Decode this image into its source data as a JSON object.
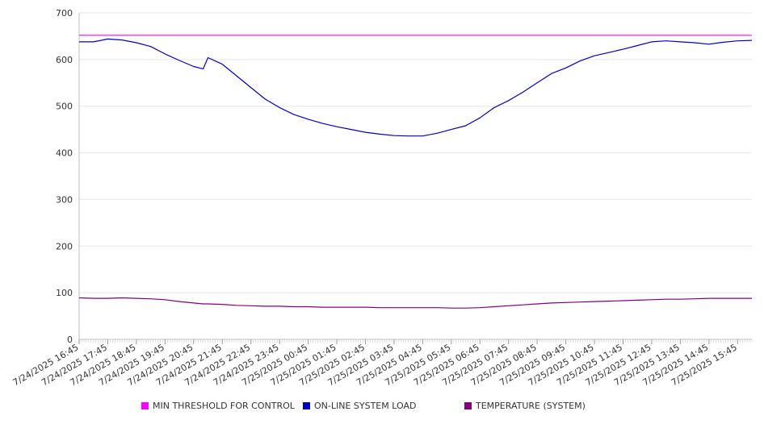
{
  "chart_data": {
    "type": "line",
    "title": "",
    "xlabel": "",
    "ylabel": "",
    "ylim": [
      0,
      700
    ],
    "yticks": [
      0,
      100,
      200,
      300,
      400,
      500,
      600,
      700
    ],
    "grid": true,
    "legend_placement": "bottom",
    "x_tick_labels": [
      "7/24/2025 16:45",
      "7/24/2025 17:45",
      "7/24/2025 18:45",
      "7/24/2025 19:45",
      "7/24/2025 20:45",
      "7/24/2025 21:45",
      "7/24/2025 22:45",
      "7/24/2025 23:45",
      "7/25/2025 00:45",
      "7/25/2025 01:45",
      "7/25/2025 02:45",
      "7/25/2025 03:45",
      "7/25/2025 04:45",
      "7/25/2025 05:45",
      "7/25/2025 06:45",
      "7/25/2025 07:45",
      "7/25/2025 08:45",
      "7/25/2025 09:45",
      "7/25/2025 10:45",
      "7/25/2025 11:45",
      "7/25/2025 12:45",
      "7/25/2025 13:45",
      "7/25/2025 14:45",
      "7/25/2025 15:45"
    ],
    "x_points": [
      "7/24/2025 16:45",
      "7/24/2025 17:15",
      "7/24/2025 17:45",
      "7/24/2025 18:15",
      "7/24/2025 18:45",
      "7/24/2025 19:15",
      "7/24/2025 19:45",
      "7/24/2025 20:15",
      "7/24/2025 20:45",
      "7/24/2025 21:05",
      "7/24/2025 21:15",
      "7/24/2025 21:45",
      "7/24/2025 22:15",
      "7/24/2025 22:45",
      "7/24/2025 23:15",
      "7/24/2025 23:45",
      "7/25/2025 00:15",
      "7/25/2025 00:45",
      "7/25/2025 01:15",
      "7/25/2025 01:45",
      "7/25/2025 02:15",
      "7/25/2025 02:45",
      "7/25/2025 03:15",
      "7/25/2025 03:45",
      "7/25/2025 04:15",
      "7/25/2025 04:45",
      "7/25/2025 05:15",
      "7/25/2025 05:45",
      "7/25/2025 06:15",
      "7/25/2025 06:45",
      "7/25/2025 07:15",
      "7/25/2025 07:45",
      "7/25/2025 08:15",
      "7/25/2025 08:45",
      "7/25/2025 09:15",
      "7/25/2025 09:45",
      "7/25/2025 10:15",
      "7/25/2025 10:45",
      "7/25/2025 11:15",
      "7/25/2025 11:45",
      "7/25/2025 12:15",
      "7/25/2025 12:45",
      "7/25/2025 13:15",
      "7/25/2025 13:45",
      "7/25/2025 14:15",
      "7/25/2025 14:45",
      "7/25/2025 15:15",
      "7/25/2025 15:45",
      "7/25/2025 16:15"
    ],
    "series": [
      {
        "name": "MIN THRESHOLD FOR CONTROL",
        "color": "#ff00ff",
        "values": [
          652,
          652,
          652,
          652,
          652,
          652,
          652,
          652,
          652,
          652,
          652,
          652,
          652,
          652,
          652,
          652,
          652,
          652,
          652,
          652,
          652,
          652,
          652,
          652,
          652,
          652,
          652,
          652,
          652,
          652,
          652,
          652,
          652,
          652,
          652,
          652,
          652,
          652,
          652,
          652,
          652,
          652,
          652,
          652,
          652,
          652,
          652,
          652,
          652
        ]
      },
      {
        "name": "ON-LINE SYSTEM LOAD",
        "color": "#0000cc",
        "values": [
          638,
          638,
          644,
          642,
          636,
          628,
          612,
          598,
          585,
          580,
          604,
          590,
          565,
          540,
          515,
          497,
          482,
          472,
          463,
          456,
          450,
          444,
          440,
          437,
          436,
          436,
          442,
          450,
          458,
          475,
          497,
          512,
          530,
          550,
          570,
          582,
          597,
          608,
          615,
          622,
          630,
          638,
          640,
          638,
          636,
          633,
          637,
          640,
          641
        ]
      },
      {
        "name": "TEMPERATURE (SYSTEM)",
        "color": "#800080",
        "values": [
          89,
          88,
          88,
          89,
          88,
          87,
          85,
          81,
          78,
          76,
          76,
          75,
          73,
          72,
          71,
          71,
          70,
          70,
          69,
          69,
          69,
          69,
          68,
          68,
          68,
          68,
          68,
          67,
          67,
          68,
          70,
          72,
          74,
          76,
          78,
          79,
          80,
          81,
          82,
          83,
          84,
          85,
          86,
          86,
          87,
          88,
          88,
          88,
          88
        ]
      }
    ]
  }
}
